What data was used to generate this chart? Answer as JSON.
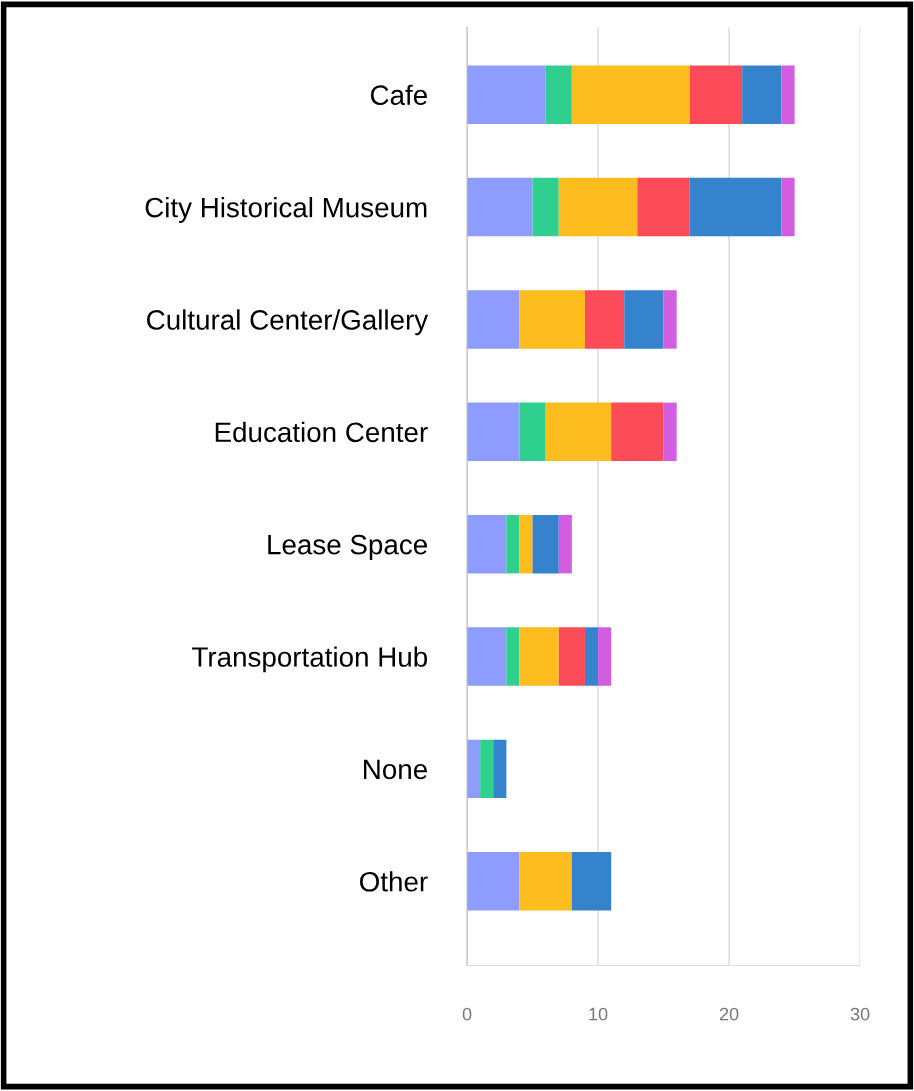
{
  "chart_data": {
    "type": "bar",
    "orientation": "horizontal",
    "stacked": true,
    "categories": [
      "Cafe",
      "City Historical Museum",
      "Cultural Center/Gallery",
      "Education Center",
      "Lease Space",
      "Transportation Hub",
      "None",
      "Other"
    ],
    "series": [
      {
        "color": "#8e9cff",
        "values": [
          6,
          5,
          4,
          4,
          3,
          3,
          1,
          4
        ]
      },
      {
        "color": "#2ecf8f",
        "values": [
          2,
          2,
          0,
          2,
          1,
          1,
          1,
          0
        ]
      },
      {
        "color": "#fdbd1f",
        "values": [
          9,
          6,
          5,
          5,
          1,
          3,
          0,
          4
        ]
      },
      {
        "color": "#fc4b58",
        "values": [
          4,
          4,
          3,
          4,
          0,
          2,
          0,
          0
        ]
      },
      {
        "color": "#3483cc",
        "values": [
          3,
          7,
          3,
          0,
          2,
          1,
          1,
          3
        ]
      },
      {
        "color": "#d35de0",
        "values": [
          1,
          1,
          1,
          1,
          1,
          1,
          0,
          0
        ]
      }
    ],
    "xlim": [
      0,
      30
    ],
    "xticks": [
      0,
      10,
      20,
      30
    ],
    "grid": "x"
  }
}
